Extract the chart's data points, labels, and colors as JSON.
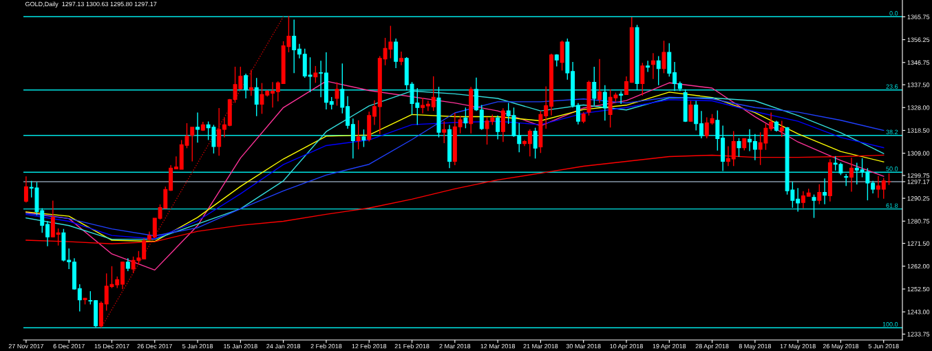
{
  "chart_data": {
    "type": "candlestick",
    "title": "GOLD,Daily  1297.13 1300.63 1295.80 1297.17",
    "categories": [
      "27 Nov 2017",
      null,
      null,
      null,
      null,
      null,
      null,
      null,
      "6 Dec 2017",
      null,
      null,
      null,
      null,
      null,
      null,
      null,
      "15 Dec 2017",
      null,
      null,
      null,
      null,
      null,
      null,
      null,
      "26 Dec 2017",
      null,
      null,
      null,
      null,
      null,
      null,
      null,
      "5 Jan 2018",
      null,
      null,
      null,
      null,
      null,
      null,
      null,
      "15 Jan 2018",
      null,
      null,
      null,
      null,
      null,
      null,
      null,
      "24 Jan 2018",
      null,
      null,
      null,
      null,
      null,
      null,
      null,
      "2 Feb 2018",
      null,
      null,
      null,
      null,
      null,
      null,
      null,
      "12 Feb 2018",
      null,
      null,
      null,
      null,
      null,
      null,
      null,
      "21 Feb 2018",
      null,
      null,
      null,
      null,
      null,
      null,
      null,
      "2 Mar 2018",
      null,
      null,
      null,
      null,
      null,
      null,
      null,
      "12 Mar 2018",
      null,
      null,
      null,
      null,
      null,
      null,
      null,
      "21 Mar 2018",
      null,
      null,
      null,
      null,
      null,
      null,
      null,
      "30 Mar 2018",
      null,
      null,
      null,
      null,
      null,
      null,
      null,
      "10 Apr 2018",
      null,
      null,
      null,
      null,
      null,
      null,
      null,
      "19 Apr 2018",
      null,
      null,
      null,
      null,
      null,
      null,
      null,
      "28 Apr 2018",
      null,
      null,
      null,
      null,
      null,
      null,
      null,
      "8 May 2018",
      null,
      null,
      null,
      null,
      null,
      null,
      null,
      "17 May 2018",
      null,
      null,
      null,
      null,
      null,
      null,
      null,
      "26 May 2018",
      null,
      null,
      null,
      null,
      null,
      null,
      null,
      "5 Jun 2018",
      null
    ],
    "ohlc": [
      [
        1289.0,
        1299.4,
        1288.5,
        1295.1
      ],
      [
        1294.8,
        1297.5,
        1290.6,
        1294.5
      ],
      [
        1294.6,
        1297.0,
        1283.2,
        1284.7
      ],
      [
        1285.1,
        1286.1,
        1275.9,
        1279.0
      ],
      [
        1279.4,
        1280.8,
        1270.3,
        1274.2
      ],
      [
        1274.2,
        1289.3,
        1274.0,
        1282.3
      ],
      [
        1275.3,
        1277.7,
        1270.6,
        1275.9
      ],
      [
        1275.9,
        1277.5,
        1264.0,
        1264.5
      ],
      [
        1264.5,
        1269.4,
        1260.8,
        1263.8
      ],
      [
        1263.7,
        1265.3,
        1252.3,
        1252.5
      ],
      [
        1252.7,
        1254.5,
        1243.2,
        1248.0
      ],
      [
        1248.1,
        1248.8,
        1246.1,
        1248.7
      ],
      [
        1247.7,
        1251.6,
        1246.1,
        1247.5
      ],
      [
        1247.7,
        1247.9,
        1236.6,
        1237.2
      ],
      [
        1237.1,
        1247.3,
        1236.6,
        1246.6
      ],
      [
        1246.3,
        1259.0,
        1243.5,
        1253.7
      ],
      [
        1253.5,
        1262.0,
        1252.9,
        1254.4
      ],
      [
        1254.2,
        1257.7,
        1252.9,
        1256.4
      ],
      [
        1254.5,
        1263.9,
        1252.5,
        1263.7
      ],
      [
        1263.7,
        1265.3,
        1259.9,
        1261.1
      ],
      [
        1260.8,
        1266.0,
        1259.2,
        1264.4
      ],
      [
        1264.4,
        1268.3,
        1262.6,
        1265.4
      ],
      [
        1265.0,
        1273.7,
        1265.0,
        1272.5
      ],
      [
        1273.2,
        1276.4,
        1272.7,
        1274.7
      ],
      [
        1274.2,
        1282.0,
        1273.7,
        1282.0
      ],
      [
        1281.9,
        1287.7,
        1281.4,
        1286.4
      ],
      [
        1286.1,
        1295.1,
        1286.1,
        1293.9
      ],
      [
        1293.6,
        1304.0,
        1293.3,
        1302.8
      ],
      [
        1302.5,
        1307.7,
        1302.5,
        1303.3
      ],
      [
        1302.3,
        1314.5,
        1302.3,
        1312.5
      ],
      [
        1312.3,
        1321.5,
        1311.1,
        1316.1
      ],
      [
        1316.5,
        1319.8,
        1305.6,
        1319.8
      ],
      [
        1319.8,
        1325.9,
        1313.4,
        1318.9
      ],
      [
        1318.6,
        1322.1,
        1318.3,
        1320.8
      ],
      [
        1320.8,
        1322.2,
        1314.5,
        1319.6
      ],
      [
        1319.8,
        1320.8,
        1308.9,
        1311.8
      ],
      [
        1311.8,
        1327.8,
        1308.0,
        1318.9
      ],
      [
        1318.9,
        1323.7,
        1315.6,
        1320.8
      ],
      [
        1320.6,
        1331.6,
        1320.2,
        1331.3
      ],
      [
        1331.4,
        1345.0,
        1330.0,
        1337.6
      ],
      [
        1335.8,
        1345.0,
        1335.6,
        1341.0
      ],
      [
        1341.3,
        1342.1,
        1331.8,
        1335.3
      ],
      [
        1335.3,
        1343.7,
        1332.9,
        1336.3
      ],
      [
        1336.3,
        1340.3,
        1324.4,
        1329.4
      ],
      [
        1329.4,
        1338.2,
        1325.4,
        1333.4
      ],
      [
        1333.2,
        1335.3,
        1332.6,
        1334.8
      ],
      [
        1334.0,
        1338.6,
        1328.0,
        1334.8
      ],
      [
        1334.6,
        1338.9,
        1330.6,
        1338.3
      ],
      [
        1338.0,
        1355.6,
        1338.0,
        1353.7
      ],
      [
        1353.4,
        1366.1,
        1351.0,
        1357.7
      ],
      [
        1357.7,
        1364.6,
        1342.3,
        1352.0
      ],
      [
        1352.3,
        1354.5,
        1348.5,
        1350.2
      ],
      [
        1350.2,
        1352.5,
        1340.4,
        1341.1
      ],
      [
        1341.5,
        1348.9,
        1334.4,
        1341.0
      ],
      [
        1340.8,
        1345.3,
        1338.3,
        1342.4
      ],
      [
        1342.5,
        1347.5,
        1332.3,
        1342.3
      ],
      [
        1342.4,
        1351.0,
        1327.2,
        1330.2
      ],
      [
        1330.5,
        1332.4,
        1327.2,
        1329.3
      ],
      [
        1331.8,
        1338.5,
        1328.8,
        1335.6
      ],
      [
        1335.6,
        1346.3,
        1325.6,
        1328.1
      ],
      [
        1328.4,
        1332.7,
        1319.2,
        1320.6
      ],
      [
        1321.0,
        1323.4,
        1306.8,
        1314.2
      ],
      [
        1314.2,
        1322.7,
        1310.6,
        1315.8
      ],
      [
        1315.8,
        1318.9,
        1311.6,
        1314.5
      ],
      [
        1314.7,
        1326.3,
        1313.9,
        1324.7
      ],
      [
        1324.4,
        1331.0,
        1320.8,
        1328.4
      ],
      [
        1328.4,
        1349.4,
        1317.0,
        1348.5
      ],
      [
        1348.2,
        1357.0,
        1345.6,
        1352.6
      ],
      [
        1352.3,
        1362.0,
        1348.5,
        1355.3
      ],
      [
        1355.3,
        1356.7,
        1344.4,
        1347.2
      ],
      [
        1347.2,
        1351.3,
        1345.6,
        1348.5
      ],
      [
        1348.5,
        1349.0,
        1335.2,
        1337.5
      ],
      [
        1337.7,
        1338.6,
        1325.0,
        1329.7
      ],
      [
        1329.9,
        1336.1,
        1320.8,
        1328.0
      ],
      [
        1328.0,
        1332.1,
        1325.6,
        1328.9
      ],
      [
        1328.7,
        1330.8,
        1326.6,
        1329.4
      ],
      [
        1328.3,
        1341.0,
        1326.6,
        1332.3
      ],
      [
        1332.0,
        1336.6,
        1315.6,
        1317.7
      ],
      [
        1317.7,
        1322.3,
        1313.2,
        1318.8
      ],
      [
        1318.8,
        1320.8,
        1302.8,
        1305.6
      ],
      [
        1305.6,
        1325.8,
        1304.0,
        1320.0
      ],
      [
        1320.0,
        1324.5,
        1317.3,
        1322.9
      ],
      [
        1323.7,
        1328.0,
        1319.4,
        1321.6
      ],
      [
        1321.3,
        1336.6,
        1317.3,
        1335.6
      ],
      [
        1335.6,
        1340.5,
        1326.6,
        1327.0
      ],
      [
        1327.0,
        1329.1,
        1318.7,
        1319.2
      ],
      [
        1319.2,
        1323.9,
        1312.6,
        1322.4
      ],
      [
        1322.2,
        1325.1,
        1320.8,
        1323.7
      ],
      [
        1323.7,
        1324.7,
        1314.8,
        1318.0
      ],
      [
        1318.0,
        1327.7,
        1313.7,
        1326.6
      ],
      [
        1326.6,
        1329.9,
        1321.2,
        1324.5
      ],
      [
        1324.7,
        1328.0,
        1315.8,
        1316.3
      ],
      [
        1316.3,
        1321.6,
        1309.4,
        1313.0
      ],
      [
        1313.0,
        1314.5,
        1312.0,
        1313.9
      ],
      [
        1313.0,
        1319.0,
        1307.7,
        1318.2
      ],
      [
        1318.2,
        1319.6,
        1306.8,
        1311.1
      ],
      [
        1311.6,
        1326.6,
        1309.1,
        1325.1
      ],
      [
        1324.5,
        1336.8,
        1319.2,
        1328.8
      ],
      [
        1328.5,
        1350.4,
        1324.7,
        1349.9
      ],
      [
        1349.9,
        1350.2,
        1345.1,
        1347.8
      ],
      [
        1346.8,
        1355.9,
        1343.4,
        1355.3
      ],
      [
        1355.3,
        1356.7,
        1339.6,
        1342.4
      ],
      [
        1343.0,
        1347.0,
        1328.0,
        1328.9
      ],
      [
        1328.9,
        1329.9,
        1321.0,
        1322.3
      ],
      [
        1322.3,
        1326.1,
        1321.5,
        1325.3
      ],
      [
        1326.1,
        1339.2,
        1324.7,
        1338.5
      ],
      [
        1338.5,
        1345.0,
        1328.9,
        1331.8
      ],
      [
        1331.4,
        1348.2,
        1329.9,
        1334.5
      ],
      [
        1334.4,
        1337.3,
        1322.6,
        1327.8
      ],
      [
        1325.1,
        1335.6,
        1319.7,
        1332.3
      ],
      [
        1332.0,
        1334.2,
        1330.4,
        1333.2
      ],
      [
        1333.6,
        1334.8,
        1329.5,
        1333.1
      ],
      [
        1333.4,
        1341.0,
        1333.4,
        1338.8
      ],
      [
        1338.5,
        1365.6,
        1338.3,
        1361.3
      ],
      [
        1361.3,
        1362.4,
        1335.2,
        1338.0
      ],
      [
        1338.0,
        1346.6,
        1333.0,
        1345.3
      ],
      [
        1345.3,
        1347.5,
        1342.8,
        1344.8
      ],
      [
        1345.9,
        1350.6,
        1339.9,
        1347.5
      ],
      [
        1347.5,
        1349.4,
        1337.3,
        1344.2
      ],
      [
        1344.2,
        1355.8,
        1342.3,
        1351.0
      ],
      [
        1351.0,
        1354.8,
        1340.9,
        1342.3
      ],
      [
        1342.5,
        1347.0,
        1334.9,
        1338.0
      ],
      [
        1338.0,
        1338.8,
        1334.9,
        1335.9
      ],
      [
        1334.2,
        1335.6,
        1322.0,
        1322.3
      ],
      [
        1322.3,
        1330.8,
        1322.1,
        1329.1
      ],
      [
        1329.1,
        1330.8,
        1318.5,
        1321.3
      ],
      [
        1321.3,
        1326.6,
        1315.2,
        1316.3
      ],
      [
        1316.3,
        1323.9,
        1315.2,
        1321.6
      ],
      [
        1321.6,
        1325.3,
        1320.9,
        1323.4
      ],
      [
        1322.7,
        1326.8,
        1310.1,
        1315.1
      ],
      [
        1315.3,
        1320.5,
        1301.6,
        1305.6
      ],
      [
        1305.6,
        1311.9,
        1303.7,
        1306.8
      ],
      [
        1306.6,
        1318.2,
        1303.7,
        1313.9
      ],
      [
        1313.9,
        1315.3,
        1307.5,
        1311.3
      ],
      [
        1311.3,
        1315.1,
        1310.2,
        1315.1
      ],
      [
        1314.8,
        1319.0,
        1309.9,
        1313.7
      ],
      [
        1313.9,
        1317.0,
        1306.1,
        1310.6
      ],
      [
        1310.6,
        1317.7,
        1304.1,
        1313.4
      ],
      [
        1313.2,
        1321.3,
        1310.4,
        1319.4
      ],
      [
        1319.2,
        1325.9,
        1318.3,
        1322.0
      ],
      [
        1322.0,
        1322.5,
        1318.0,
        1318.5
      ],
      [
        1318.3,
        1322.5,
        1315.8,
        1319.6
      ],
      [
        1319.6,
        1319.9,
        1291.8,
        1293.4
      ],
      [
        1293.7,
        1297.2,
        1286.3,
        1289.4
      ],
      [
        1289.9,
        1294.5,
        1284.7,
        1288.3
      ],
      [
        1288.5,
        1293.2,
        1286.1,
        1291.3
      ],
      [
        1291.1,
        1294.2,
        1291.1,
        1292.5
      ],
      [
        1290.6,
        1291.8,
        1282.1,
        1289.4
      ],
      [
        1289.4,
        1296.1,
        1287.8,
        1292.7
      ],
      [
        1292.7,
        1298.5,
        1287.8,
        1291.5
      ],
      [
        1291.3,
        1306.5,
        1288.9,
        1305.1
      ],
      [
        1304.9,
        1307.7,
        1301.8,
        1304.4
      ],
      [
        1304.4,
        1305.1,
        1299.9,
        1300.8
      ],
      [
        1299.3,
        1300.4,
        1295.4,
        1299.0
      ],
      [
        1299.0,
        1307.1,
        1293.0,
        1302.8
      ],
      [
        1302.8,
        1305.0,
        1296.0,
        1302.0
      ],
      [
        1302.1,
        1306.9,
        1299.0,
        1301.2
      ],
      [
        1301.3,
        1302.8,
        1289.4,
        1296.6
      ],
      [
        1296.6,
        1297.5,
        1292.3,
        1294.0
      ],
      [
        1294.0,
        1299.5,
        1290.4,
        1295.4
      ],
      [
        1294.0,
        1298.7,
        1290.1,
        1297.5
      ],
      [
        1297.13,
        1300.63,
        1295.8,
        1297.17
      ]
    ],
    "colors": [
      "#ff0000",
      "#00ffff",
      "#00ffff",
      "#00ffff",
      "#00ffff",
      "#ff0000",
      "#ff0000",
      "#00ffff",
      "#00ffff",
      "#00ffff",
      "#00ffff",
      "#ff0000",
      "#00ffff",
      "#00ffff",
      "#ff0000",
      "#ff0000",
      "#ff0000",
      "#ff0000",
      "#ff0000",
      "#00ffff",
      "#ff0000",
      "#ff0000",
      "#ff0000",
      "#ff0000",
      "#ff0000",
      "#ff0000",
      "#ff0000",
      "#ff0000",
      "#ff0000",
      "#ff0000",
      "#ff0000",
      "#ff0000",
      "#00ffff",
      "#ff0000",
      "#00ffff",
      "#00ffff",
      "#ff0000",
      "#ff0000",
      "#ff0000",
      "#ff0000",
      "#ff0000",
      "#00ffff",
      "#ff0000",
      "#00ffff",
      "#ff0000",
      "#ff0000",
      "#ff0000",
      "#ff0000",
      "#ff0000",
      "#ff0000",
      "#00ffff",
      "#00ffff",
      "#00ffff",
      "#00ffff",
      "#ff0000",
      "#00ffff",
      "#00ffff",
      "#00ffff",
      "#ff0000",
      "#00ffff",
      "#00ffff",
      "#00ffff",
      "#ff0000",
      "#00ffff",
      "#ff0000",
      "#ff0000",
      "#ff0000",
      "#ff0000",
      "#ff0000",
      "#00ffff",
      "#ff0000",
      "#00ffff",
      "#00ffff",
      "#00ffff",
      "#ff0000",
      "#ff0000",
      "#ff0000",
      "#00ffff",
      "#ff0000",
      "#00ffff",
      "#ff0000",
      "#ff0000",
      "#00ffff",
      "#ff0000",
      "#00ffff",
      "#00ffff",
      "#ff0000",
      "#ff0000",
      "#00ffff",
      "#ff0000",
      "#00ffff",
      "#00ffff",
      "#00ffff",
      "#ff0000",
      "#ff0000",
      "#00ffff",
      "#ff0000",
      "#ff0000",
      "#ff0000",
      "#00ffff",
      "#ff0000",
      "#00ffff",
      "#00ffff",
      "#00ffff",
      "#ff0000",
      "#ff0000",
      "#00ffff",
      "#ff0000",
      "#00ffff",
      "#ff0000",
      "#ff0000",
      "#00ffff",
      "#ff0000",
      "#ff0000",
      "#00ffff",
      "#ff0000",
      "#00ffff",
      "#ff0000",
      "#00ffff",
      "#ff0000",
      "#00ffff",
      "#00ffff",
      "#00ffff",
      "#00ffff",
      "#ff0000",
      "#00ffff",
      "#00ffff",
      "#ff0000",
      "#ff0000",
      "#00ffff",
      "#00ffff",
      "#ff0000",
      "#ff0000",
      "#00ffff",
      "#ff0000",
      "#00ffff",
      "#00ffff",
      "#ff0000",
      "#ff0000",
      "#ff0000",
      "#00ffff",
      "#ff0000",
      "#00ffff",
      "#00ffff",
      "#00ffff",
      "#ff0000",
      "#ff0000",
      "#00ffff",
      "#ff0000",
      "#00ffff",
      "#ff0000",
      "#00ffff",
      "#00ffff",
      "#00ffff",
      "#ff0000",
      "#00ffff",
      "#00ffff",
      "#00ffff",
      "#00ffff",
      "#ff0000",
      "#ff0000",
      "#ff0000"
    ],
    "series": [
      {
        "type": "line",
        "color": "#ff3399",
        "values": [
          1284.4,
          null,
          null,
          null,
          null,
          null,
          null,
          null,
          1281.8,
          null,
          null,
          null,
          null,
          null,
          null,
          null,
          1267.1,
          null,
          null,
          null,
          null,
          null,
          null,
          null,
          1260.4,
          null,
          null,
          null,
          null,
          null,
          null,
          null,
          1278.9,
          null,
          null,
          null,
          null,
          null,
          null,
          null,
          1307.0,
          null,
          null,
          null,
          null,
          null,
          null,
          null,
          1328.0,
          null,
          null,
          null,
          null,
          null,
          null,
          null,
          1339.0,
          null,
          null,
          null,
          null,
          null,
          null,
          null,
          1335.1,
          null,
          null,
          null,
          null,
          null,
          null,
          null,
          null,
          null,
          null,
          null,
          null,
          null,
          null,
          null,
          1329.9,
          null,
          null,
          null,
          null,
          null,
          null,
          null,
          1326.6,
          null,
          null,
          null,
          null,
          null,
          null,
          null,
          1320.4,
          null,
          null,
          null,
          null,
          null,
          null,
          null,
          1327.8,
          null,
          null,
          null,
          null,
          null,
          null,
          null,
          1330.9,
          null,
          null,
          null,
          null,
          null,
          null,
          null,
          1338.3,
          null,
          null,
          null,
          null,
          null,
          null,
          null,
          1336.1,
          null,
          null,
          null,
          null,
          null,
          null,
          null,
          1324.2,
          null,
          null,
          null,
          null,
          null,
          null,
          null,
          1313.7,
          null,
          null,
          null,
          null,
          null,
          null,
          null,
          1306.0,
          null,
          null,
          null,
          null,
          null,
          null,
          null,
          1299.4,
          null
        ]
      },
      {
        "type": "line",
        "color": "#ffff00",
        "values": [
          1284.6,
          null,
          null,
          null,
          null,
          null,
          null,
          null,
          1282.8,
          null,
          null,
          null,
          null,
          null,
          null,
          null,
          1272.8,
          null,
          null,
          null,
          null,
          null,
          null,
          null,
          1272.3,
          null,
          null,
          null,
          null,
          null,
          null,
          null,
          1282.3,
          null,
          null,
          null,
          null,
          null,
          null,
          null,
          1295.2,
          null,
          null,
          null,
          null,
          null,
          null,
          null,
          1306.6,
          null,
          null,
          null,
          null,
          null,
          null,
          null,
          1316.1,
          null,
          null,
          null,
          null,
          null,
          null,
          null,
          1316.6,
          null,
          null,
          null,
          null,
          null,
          null,
          null,
          1325.1,
          null,
          null,
          null,
          null,
          null,
          null,
          null,
          1324.2,
          null,
          null,
          null,
          null,
          null,
          null,
          null,
          1324.2,
          null,
          null,
          null,
          null,
          null,
          null,
          null,
          1322.5,
          null,
          null,
          null,
          null,
          null,
          null,
          null,
          1327.2,
          null,
          null,
          null,
          null,
          null,
          null,
          null,
          1329.0,
          null,
          null,
          null,
          null,
          null,
          null,
          null,
          1334.4,
          null,
          null,
          null,
          null,
          null,
          null,
          null,
          1332.2,
          null,
          null,
          null,
          null,
          null,
          null,
          null,
          1325.9,
          null,
          null,
          null,
          null,
          null,
          null,
          null,
          1317.1,
          null,
          null,
          null,
          null,
          null,
          null,
          null,
          1309.7,
          null,
          null,
          null,
          null,
          null,
          null,
          null,
          1305.4,
          null
        ]
      },
      {
        "type": "line",
        "color": "#33dddd",
        "values": [
          1282.1,
          null,
          null,
          null,
          null,
          null,
          null,
          null,
          1278.9,
          null,
          null,
          null,
          null,
          null,
          null,
          null,
          1273.2,
          null,
          null,
          null,
          null,
          null,
          null,
          null,
          1273.2,
          null,
          null,
          null,
          null,
          null,
          null,
          null,
          null,
          null,
          null,
          null,
          null,
          null,
          null,
          null,
          1285.9,
          null,
          null,
          null,
          null,
          null,
          null,
          null,
          1297.5,
          null,
          null,
          null,
          null,
          null,
          null,
          null,
          1318.0,
          null,
          null,
          null,
          null,
          null,
          null,
          null,
          1328.7,
          null,
          null,
          null,
          null,
          null,
          null,
          null,
          1334.9,
          null,
          null,
          null,
          null,
          null,
          null,
          null,
          1333.7,
          null,
          null,
          null,
          null,
          null,
          null,
          null,
          1331.8,
          null,
          null,
          null,
          null,
          null,
          null,
          null,
          1326.6,
          null,
          null,
          null,
          null,
          null,
          null,
          null,
          1329.1,
          null,
          null,
          null,
          null,
          null,
          null,
          null,
          1327.0,
          null,
          null,
          null,
          null,
          null,
          null,
          null,
          1332.0,
          null,
          null,
          null,
          null,
          null,
          null,
          null,
          1332.0,
          null,
          null,
          null,
          null,
          null,
          null,
          null,
          1330.8,
          null,
          null,
          null,
          null,
          null,
          null,
          null,
          1324.7,
          null,
          null,
          null,
          null,
          null,
          null,
          null,
          1317.5,
          null,
          null,
          null,
          null,
          null,
          null,
          null,
          1308.9,
          null
        ]
      },
      {
        "type": "line",
        "color": "#0000ff",
        "values": [
          1283.5,
          null,
          null,
          null,
          null,
          null,
          null,
          null,
          1280.7,
          null,
          null,
          null,
          null,
          null,
          null,
          null,
          1274.8,
          null,
          null,
          null,
          null,
          null,
          null,
          null,
          1273.4,
          null,
          null,
          null,
          null,
          null,
          null,
          null,
          1280.9,
          null,
          null,
          null,
          null,
          null,
          null,
          null,
          1292.1,
          null,
          null,
          null,
          null,
          null,
          null,
          null,
          1304.3,
          null,
          null,
          null,
          null,
          null,
          null,
          null,
          1312.2,
          null,
          null,
          null,
          null,
          null,
          null,
          null,
          1314.5,
          null,
          null,
          null,
          null,
          null,
          null,
          null,
          1320.9,
          null,
          null,
          null,
          null,
          null,
          null,
          null,
          1321.8,
          null,
          null,
          null,
          null,
          null,
          null,
          null,
          1322.3,
          null,
          null,
          null,
          null,
          null,
          null,
          null,
          1320.9,
          null,
          null,
          null,
          null,
          null,
          null,
          null,
          1325.6,
          null,
          null,
          null,
          null,
          null,
          null,
          null,
          1328.0,
          null,
          null,
          null,
          null,
          null,
          null,
          null,
          1331.3,
          null,
          null,
          null,
          null,
          null,
          null,
          null,
          1330.8,
          null,
          null,
          null,
          null,
          null,
          null,
          null,
          1326.3,
          null,
          null,
          null,
          null,
          null,
          null,
          null,
          1322.3,
          null,
          null,
          null,
          null,
          null,
          null,
          null,
          1315.6,
          null,
          null,
          null,
          null,
          null,
          null,
          null,
          1311.3,
          null
        ]
      },
      {
        "type": "line",
        "color": "#2040ff",
        "values": [
          1284.0,
          null,
          null,
          null,
          null,
          null,
          null,
          null,
          1281.8,
          null,
          null,
          null,
          null,
          null,
          null,
          null,
          1277.5,
          null,
          null,
          null,
          null,
          null,
          null,
          null,
          1274.6,
          null,
          null,
          null,
          null,
          null,
          null,
          null,
          1278.0,
          null,
          null,
          null,
          null,
          null,
          null,
          null,
          1285.9,
          null,
          null,
          null,
          null,
          null,
          null,
          null,
          1293.3,
          null,
          null,
          null,
          null,
          null,
          null,
          null,
          1299.9,
          null,
          null,
          null,
          null,
          null,
          null,
          null,
          1304.4,
          null,
          null,
          null,
          null,
          null,
          null,
          null,
          1314.7,
          null,
          null,
          null,
          null,
          null,
          null,
          null,
          1325.8,
          null,
          null,
          null,
          null,
          null,
          null,
          null,
          1330.4,
          null,
          null,
          null,
          null,
          null,
          null,
          null,
          1330.4,
          null,
          null,
          null,
          null,
          null,
          null,
          null,
          1331.6,
          null,
          null,
          null,
          null,
          null,
          null,
          null,
          1329.9,
          null,
          null,
          null,
          null,
          null,
          null,
          null,
          1332.3,
          null,
          null,
          null,
          null,
          null,
          null,
          null,
          1331.6,
          null,
          null,
          null,
          null,
          null,
          null,
          null,
          1328.0,
          null,
          null,
          null,
          null,
          null,
          null,
          null,
          1326.1,
          null,
          null,
          null,
          null,
          null,
          null,
          null,
          1322.7,
          null,
          null,
          null,
          null,
          null,
          null,
          null,
          1318.5,
          null
        ]
      },
      {
        "type": "line",
        "color": "#ff0000",
        "values": [
          1272.8,
          null,
          null,
          null,
          null,
          null,
          null,
          null,
          1272.2,
          null,
          null,
          null,
          null,
          null,
          null,
          null,
          1271.3,
          null,
          null,
          null,
          null,
          null,
          null,
          null,
          1272.2,
          null,
          null,
          null,
          null,
          null,
          null,
          null,
          1276.5,
          null,
          null,
          null,
          null,
          null,
          null,
          null,
          1279.0,
          null,
          null,
          null,
          null,
          null,
          null,
          null,
          1280.7,
          null,
          null,
          null,
          null,
          null,
          null,
          null,
          1283.6,
          null,
          null,
          null,
          null,
          null,
          null,
          null,
          1286.2,
          null,
          null,
          null,
          null,
          null,
          null,
          null,
          1289.9,
          null,
          null,
          null,
          null,
          null,
          null,
          null,
          1294.2,
          null,
          null,
          null,
          null,
          null,
          null,
          null,
          1297.9,
          null,
          null,
          null,
          null,
          null,
          null,
          null,
          1300.7,
          null,
          null,
          null,
          null,
          null,
          null,
          null,
          1303.6,
          null,
          null,
          null,
          null,
          null,
          null,
          null,
          1305.6,
          null,
          null,
          null,
          null,
          null,
          null,
          null,
          1307.6,
          null,
          null,
          null,
          null,
          null,
          null,
          null,
          1308.2,
          null,
          null,
          null,
          null,
          null,
          null,
          null,
          1307.3,
          null,
          null,
          null,
          null,
          null,
          null,
          null,
          1307.3,
          null,
          null,
          null,
          null,
          null,
          null,
          null,
          1307.6,
          null,
          null,
          null,
          null,
          null,
          null,
          null,
          1308.2,
          null
        ]
      },
      {
        "type": "line",
        "color": "#cc0000",
        "line_style": "dotted",
        "values": [
          null,
          null,
          null,
          null,
          null,
          null,
          null,
          null,
          null,
          null,
          null,
          null,
          null,
          null,
          1236.4,
          null,
          null,
          null,
          null,
          null,
          null,
          null,
          null,
          null,
          null,
          null,
          null,
          null,
          null,
          null,
          null,
          null,
          null,
          null,
          null,
          null,
          null,
          null,
          null,
          null,
          null,
          null,
          null,
          null,
          null,
          null,
          null,
          null,
          1365.8,
          null,
          null,
          null,
          null,
          null,
          null,
          null,
          null,
          null,
          null,
          null,
          null,
          null,
          null,
          null,
          null,
          null,
          null,
          null,
          null,
          null,
          null,
          null,
          null,
          null,
          null,
          null,
          null,
          null,
          null,
          null,
          null,
          null,
          null,
          null,
          null,
          null,
          null,
          null,
          null,
          null,
          null,
          null,
          null,
          null,
          null,
          null,
          null,
          null,
          null,
          null,
          null,
          null,
          null,
          null,
          null,
          null,
          null,
          null,
          null,
          null,
          null,
          null,
          null,
          null,
          null,
          null,
          null,
          null,
          null,
          null,
          null,
          null,
          null,
          null,
          null,
          null,
          null,
          null,
          null,
          null,
          null,
          null,
          null,
          null,
          null,
          null,
          null,
          null,
          null,
          null,
          null,
          null,
          null,
          null,
          null,
          null,
          null,
          null,
          null,
          null,
          null,
          null,
          null,
          null,
          null,
          null,
          null,
          null,
          null,
          null,
          null,
          null
        ]
      }
    ],
    "ref_lines": [
      {
        "axis": "y",
        "value": 1365.8,
        "color": "#00e5e5"
      },
      {
        "axis": "y",
        "value": 1335.3,
        "color": "#00e5e5"
      },
      {
        "axis": "y",
        "value": 1316.4,
        "color": "#00e5e5"
      },
      {
        "axis": "y",
        "value": 1301.1,
        "color": "#00e5e5"
      },
      {
        "axis": "y",
        "value": 1285.8,
        "color": "#00e5e5"
      },
      {
        "axis": "y",
        "value": 1236.4,
        "color": "#00e5e5"
      },
      {
        "axis": "y",
        "value": 1297.17,
        "color": "#8899aa"
      }
    ],
    "annotations": [
      {
        "text": "0.0",
        "y": 1365.8
      },
      {
        "text": "23.6",
        "y": 1335.3
      },
      {
        "text": "38.2",
        "y": 1316.4
      },
      {
        "text": "50.0",
        "y": 1301.1
      },
      {
        "text": "61.8",
        "y": 1285.8
      },
      {
        "text": "100.0",
        "y": 1236.4
      }
    ],
    "ylim": [
      1231.3,
      1372.75
    ],
    "yticks": [
      {
        "value": 1233.75,
        "label": "1233.75"
      },
      {
        "value": 1243.0,
        "label": "1243.00"
      },
      {
        "value": 1252.5,
        "label": "1252.50"
      },
      {
        "value": 1262.0,
        "label": "1262.00"
      },
      {
        "value": 1271.5,
        "label": "1271.50"
      },
      {
        "value": 1280.75,
        "label": "1280.75"
      },
      {
        "value": 1290.25,
        "label": "1290.25"
      },
      {
        "value": 1297.17,
        "label": "1297.17"
      },
      {
        "value": 1299.75,
        "label": "1299.75"
      },
      {
        "value": 1309.0,
        "label": "1309.00"
      },
      {
        "value": 1318.5,
        "label": "1318.50"
      },
      {
        "value": 1328.0,
        "label": "1328.00"
      },
      {
        "value": 1337.5,
        "label": "1337.50"
      },
      {
        "value": 1346.75,
        "label": "1346.75"
      },
      {
        "value": 1356.25,
        "label": "1356.25"
      },
      {
        "value": 1365.75,
        "label": "1365.75"
      }
    ],
    "legend": false
  }
}
